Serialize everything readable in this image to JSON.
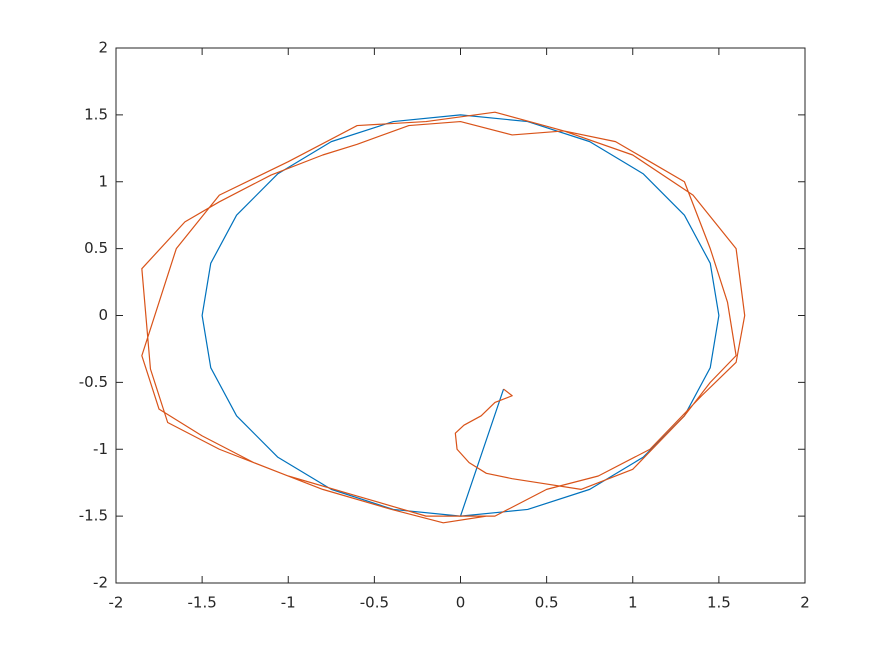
{
  "chart_data": {
    "type": "line",
    "xlim": [
      -2,
      2
    ],
    "ylim": [
      -2,
      2
    ],
    "xticks": [
      -2,
      -1.5,
      -1,
      -0.5,
      0,
      0.5,
      1,
      1.5,
      2
    ],
    "yticks": [
      -2,
      -1.5,
      -1,
      -0.5,
      0,
      0.5,
      1,
      1.5,
      2
    ],
    "grid": false,
    "series": [
      {
        "color": "#0072bd",
        "x": [
          0.25,
          0,
          0.39,
          0.75,
          1.06,
          1.3,
          1.45,
          1.5,
          1.45,
          1.3,
          1.06,
          0.75,
          0.39,
          0,
          -0.39,
          -0.75,
          -1.06,
          -1.3,
          -1.45,
          -1.5,
          -1.45,
          -1.3,
          -1.06,
          -0.75,
          -0.39,
          0
        ],
        "values": [
          -0.55,
          -1.5,
          -1.45,
          -1.3,
          -1.06,
          -0.75,
          -0.39,
          0,
          0.39,
          0.75,
          1.06,
          1.3,
          1.45,
          1.5,
          1.45,
          1.3,
          1.06,
          0.75,
          0.39,
          0,
          -0.39,
          -0.75,
          -1.06,
          -1.3,
          -1.45,
          -1.5
        ]
      },
      {
        "color": "#d95319",
        "x": [
          0.25,
          0.3,
          0.2,
          0.12,
          0.02,
          -0.03,
          -0.02,
          0.05,
          0.15,
          0.3,
          0.45,
          0.7,
          1.0,
          1.3,
          1.45,
          1.6,
          1.55,
          1.45,
          1.3,
          1.1,
          0.9,
          0.6,
          0.3,
          0.0,
          -0.3,
          -0.6,
          -0.8,
          -1.1,
          -1.4,
          -1.6,
          -1.85,
          -1.8,
          -1.7,
          -1.4,
          -1.0,
          -0.6,
          -0.2,
          0.2,
          0.5,
          0.8,
          1.1,
          1.4,
          1.6,
          1.65,
          1.6,
          1.35,
          1.0,
          0.6,
          0.2,
          -0.2,
          -0.6,
          -1.0,
          -1.4,
          -1.65,
          -1.75,
          -1.85,
          -1.75,
          -1.5,
          -1.2,
          -0.8,
          -0.4,
          -0.1,
          0.15
        ],
        "values": [
          -0.55,
          -0.6,
          -0.65,
          -0.75,
          -0.82,
          -0.88,
          -1.0,
          -1.1,
          -1.18,
          -1.22,
          -1.25,
          -1.3,
          -1.15,
          -0.75,
          -0.5,
          -0.3,
          0.1,
          0.5,
          1.0,
          1.15,
          1.3,
          1.38,
          1.35,
          1.45,
          1.42,
          1.28,
          1.2,
          1.05,
          0.85,
          0.7,
          0.35,
          -0.4,
          -0.8,
          -1.0,
          -1.2,
          -1.35,
          -1.5,
          -1.5,
          -1.3,
          -1.2,
          -1.0,
          -0.6,
          -0.35,
          0.0,
          0.5,
          0.9,
          1.2,
          1.38,
          1.52,
          1.45,
          1.42,
          1.15,
          0.9,
          0.5,
          0.1,
          -0.3,
          -0.7,
          -0.9,
          -1.1,
          -1.3,
          -1.45,
          -1.55,
          -1.5
        ]
      }
    ]
  }
}
